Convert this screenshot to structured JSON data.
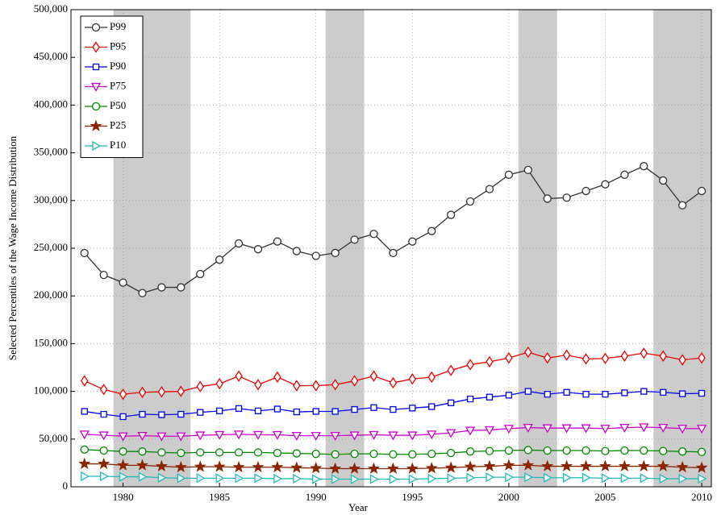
{
  "chart_data": {
    "type": "line",
    "x_label": "Year",
    "y_label": "Selected Percentiles of the Wage Income Distribution",
    "x": [
      1978,
      1979,
      1980,
      1981,
      1982,
      1983,
      1984,
      1985,
      1986,
      1987,
      1988,
      1989,
      1990,
      1991,
      1992,
      1993,
      1994,
      1995,
      1996,
      1997,
      1998,
      1999,
      2000,
      2001,
      2002,
      2003,
      2004,
      2005,
      2006,
      2007,
      2008,
      2009,
      2010
    ],
    "xlim": [
      1977.3,
      2010.5
    ],
    "xticks": [
      1980,
      1985,
      1990,
      1995,
      2000,
      2005,
      2010
    ],
    "ylim": [
      0,
      500000
    ],
    "yticks": [
      0,
      {
        "value": 50000,
        "label": "50,000"
      },
      {
        "value": 100000,
        "label": "100,000"
      },
      {
        "value": 150000,
        "label": "150,000"
      },
      {
        "value": 200000,
        "label": "200,000"
      },
      {
        "value": 250000,
        "label": "250,000"
      },
      {
        "value": 300000,
        "label": "300,000"
      },
      {
        "value": 350000,
        "label": "350,000"
      },
      {
        "value": 400000,
        "label": "400,000"
      },
      {
        "value": 450000,
        "label": "450,000"
      },
      {
        "value": 500000,
        "label": "500,000"
      }
    ],
    "grid": true,
    "legend_position": "upper-left",
    "shaded_regions": [
      [
        1979.5,
        1983.5
      ],
      [
        1990.5,
        1992.5
      ],
      [
        2000.5,
        2002.5
      ],
      [
        2007.5,
        2010.5
      ]
    ],
    "shade_color": "#cccccc",
    "series": [
      {
        "name": "P99",
        "color": "#333333",
        "marker": "circle",
        "values": [
          245000,
          222000,
          214000,
          203000,
          209000,
          209000,
          223000,
          238000,
          255000,
          249000,
          257000,
          247000,
          242000,
          245000,
          259000,
          265000,
          245000,
          257000,
          268000,
          285000,
          299000,
          312000,
          327000,
          332000,
          302000,
          303000,
          310000,
          317000,
          327000,
          336000,
          321000,
          295000,
          310000
        ]
      },
      {
        "name": "P95",
        "color": "#ee0000",
        "marker": "diamond",
        "values": [
          111000,
          102000,
          97000,
          99000,
          99500,
          100000,
          105000,
          108000,
          116000,
          107000,
          115000,
          106000,
          106000,
          107000,
          111000,
          116000,
          109000,
          113000,
          115000,
          122000,
          128000,
          131000,
          135000,
          141000,
          135000,
          138000,
          134000,
          134500,
          137000,
          140000,
          137000,
          133000,
          135000
        ]
      },
      {
        "name": "P90",
        "color": "#0000ee",
        "marker": "square",
        "values": [
          79000,
          76000,
          73500,
          76000,
          75500,
          76000,
          78000,
          79500,
          82000,
          79500,
          81500,
          78500,
          79000,
          79000,
          81000,
          83000,
          81000,
          82500,
          84000,
          88000,
          92000,
          94000,
          96000,
          100000,
          97000,
          99000,
          97000,
          97000,
          98500,
          100000,
          99000,
          97500,
          98000
        ]
      },
      {
        "name": "P75",
        "color": "#cc00cc",
        "marker": "triangle-down",
        "values": [
          55000,
          54000,
          53000,
          53500,
          53000,
          53000,
          54000,
          54500,
          55000,
          54500,
          54500,
          53500,
          53500,
          53500,
          54000,
          54500,
          54000,
          54000,
          55000,
          56500,
          59000,
          59500,
          61000,
          62000,
          61500,
          61500,
          61500,
          61000,
          62000,
          62500,
          62000,
          61000,
          61000
        ]
      },
      {
        "name": "P50",
        "color": "#008800",
        "marker": "circle",
        "values": [
          39000,
          38000,
          37000,
          37000,
          36000,
          35500,
          36000,
          36000,
          36000,
          36000,
          35500,
          35000,
          34500,
          34000,
          34500,
          34500,
          34000,
          34000,
          34500,
          35500,
          37000,
          37500,
          38000,
          38500,
          38000,
          38000,
          38000,
          37500,
          38000,
          38000,
          37500,
          37000,
          36500
        ]
      },
      {
        "name": "P25",
        "color": "#8b2500",
        "marker": "star",
        "values": [
          24000,
          24000,
          22500,
          22500,
          21500,
          20500,
          21000,
          21000,
          20500,
          20500,
          20500,
          20000,
          19500,
          19000,
          19000,
          19000,
          19000,
          19000,
          19500,
          20000,
          21000,
          21500,
          22500,
          22500,
          21500,
          21500,
          21500,
          21500,
          21500,
          21500,
          21500,
          20500,
          20000
        ]
      },
      {
        "name": "P10",
        "color": "#22bbbb",
        "marker": "triangle-right",
        "values": [
          11000,
          11000,
          10500,
          10500,
          9500,
          9000,
          9000,
          9000,
          9000,
          9000,
          8500,
          8500,
          8000,
          8000,
          8000,
          8000,
          8000,
          8000,
          8500,
          9000,
          9500,
          10000,
          10000,
          10000,
          9500,
          9500,
          9500,
          9000,
          9000,
          9000,
          8500,
          8500,
          8500
        ]
      }
    ]
  }
}
